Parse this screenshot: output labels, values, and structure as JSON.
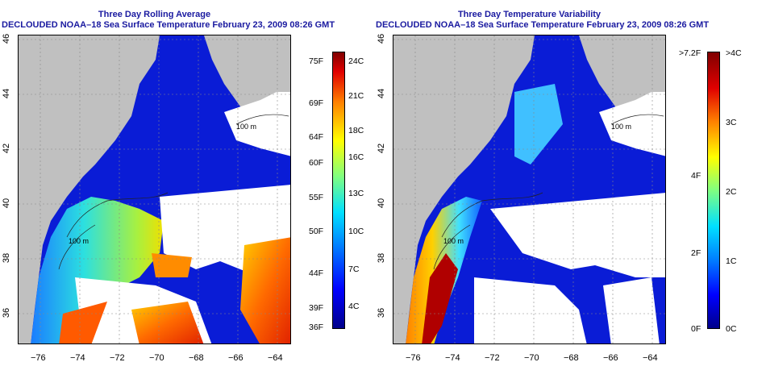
{
  "left_panel": {
    "title_line1": "Three Day Rolling Average",
    "title_line2": "DECLOUDED NOAA–18 Sea Surface Temperature February 23, 2009 08:26 GMT",
    "x_ticks": [
      "−76",
      "−74",
      "−72",
      "−70",
      "−68",
      "−66",
      "−64"
    ],
    "y_ticks": [
      "36",
      "38",
      "40",
      "42",
      "44",
      "46"
    ],
    "contour_labels": [
      "100 m",
      "100 m"
    ],
    "colorbar_fahrenheit": [
      "75F",
      "69F",
      "64F",
      "60F",
      "55F",
      "50F",
      "44F",
      "39F",
      "36F"
    ],
    "colorbar_celsius": [
      "24C",
      "21C",
      "18C",
      "16C",
      "13C",
      "10C",
      "7C",
      "4C"
    ]
  },
  "right_panel": {
    "title_line1": "Three Day Temperature Variability",
    "title_line2": "DECLOUDED NOAA–18 Sea Surface Temperature February 23, 2009 08:26 GMT",
    "x_ticks": [
      "−76",
      "−74",
      "−72",
      "−70",
      "−68",
      "−66",
      "−64"
    ],
    "y_ticks": [
      "36",
      "38",
      "40",
      "42",
      "44",
      "46"
    ],
    "contour_labels": [
      "100 m",
      "100 m"
    ],
    "colorbar_fahrenheit": [
      ">7.2F",
      "4F",
      "2F",
      "0F"
    ],
    "colorbar_celsius": [
      ">4C",
      "3C",
      "2C",
      "1C",
      "0C"
    ]
  },
  "colors": {
    "land": "#c0c0c0",
    "cloud": "#ffffff",
    "title": "#1a1aa0",
    "contour": "#222222"
  }
}
